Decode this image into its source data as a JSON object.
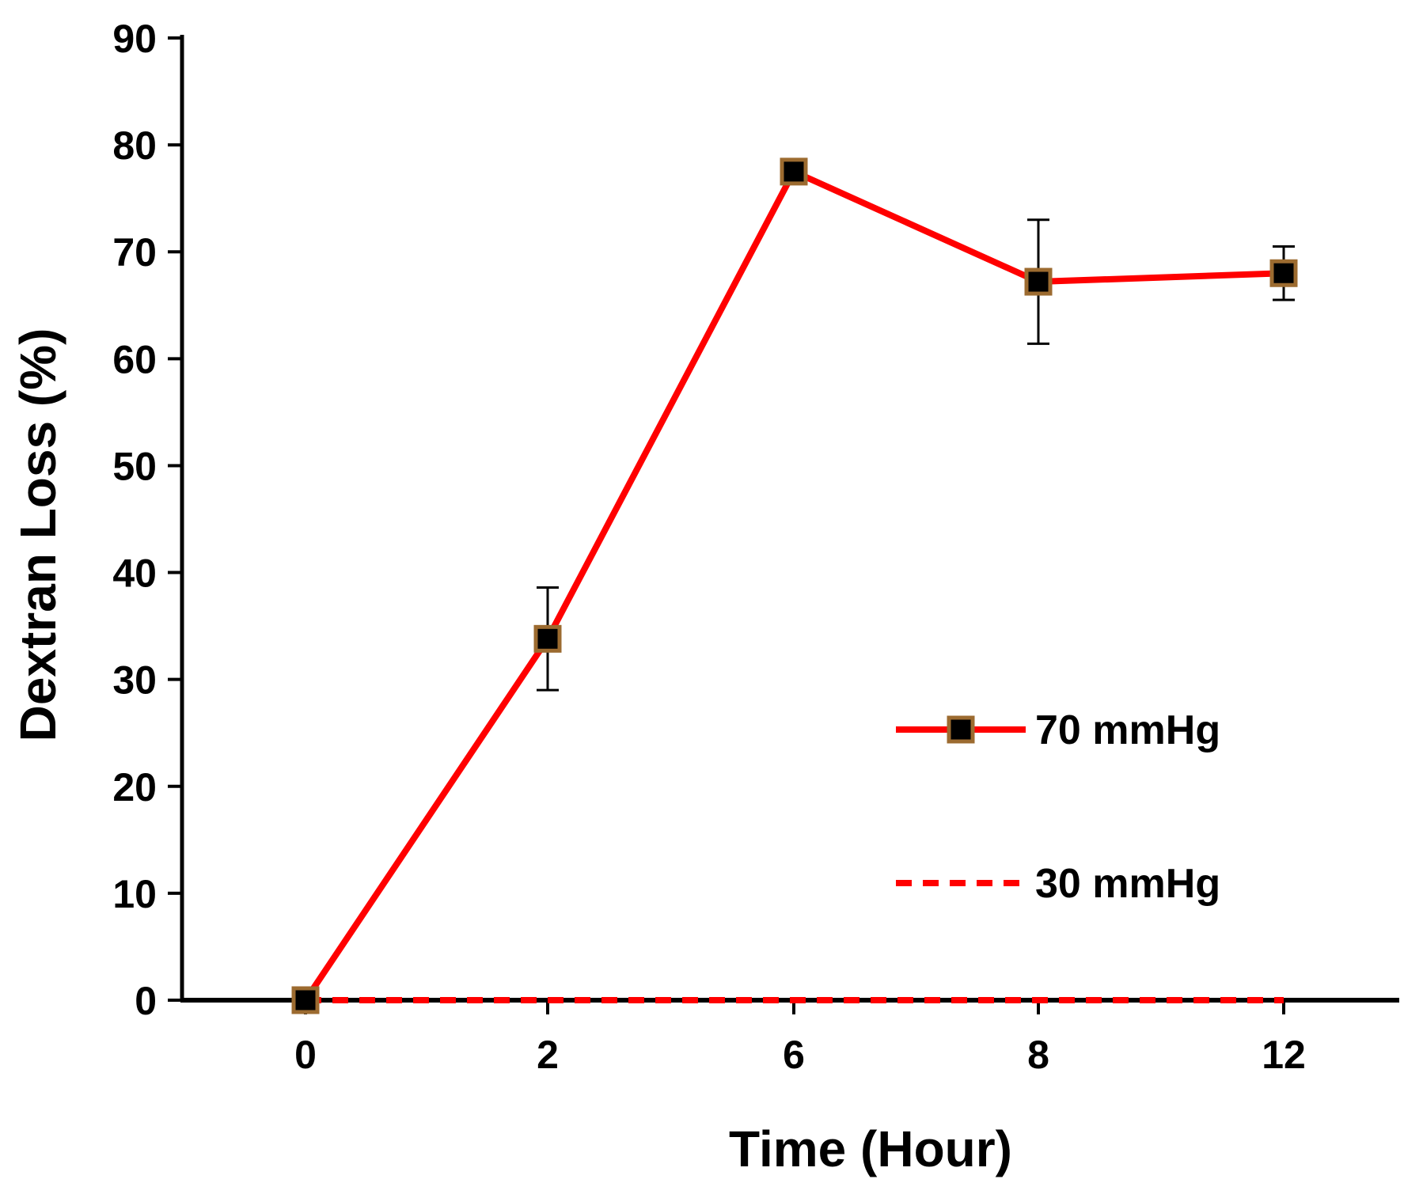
{
  "chart_data": {
    "type": "line",
    "title": "",
    "xlabel": "Time (Hour)",
    "ylabel": "Dextran Loss (%)",
    "categories": [
      "0",
      "2",
      "6",
      "8",
      "12"
    ],
    "ylim": [
      0,
      90
    ],
    "yticks": [
      0,
      10,
      20,
      30,
      40,
      50,
      60,
      70,
      80,
      90
    ],
    "yticks_labels": [
      "0",
      "10",
      "20",
      "30",
      "40",
      "50",
      "60",
      "70",
      "80",
      "90"
    ],
    "grid": false,
    "legend_position": "right",
    "series": [
      {
        "name": "70 mmHg",
        "values": [
          0,
          33.8,
          77.5,
          67.2,
          68.0
        ],
        "error": [
          null,
          4.8,
          null,
          5.8,
          2.5
        ],
        "color": "#ff0000",
        "line_style": "solid",
        "marker": "square",
        "marker_fill": "#000000",
        "marker_edge": "#9c6b30"
      },
      {
        "name": "30 mmHg",
        "values": [
          0,
          0,
          0,
          0,
          0
        ],
        "color": "#ff0000",
        "line_style": "dashed",
        "marker": "none"
      }
    ]
  }
}
